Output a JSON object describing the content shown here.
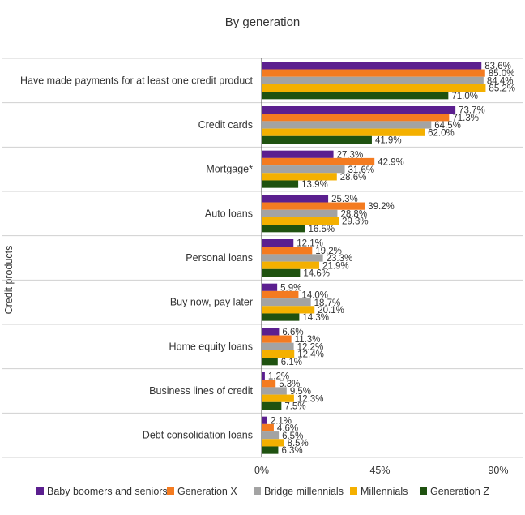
{
  "chart_data": {
    "type": "bar",
    "orientation": "horizontal",
    "title": "By generation",
    "ylabel": "Credit products",
    "xlabel": "",
    "xlim": [
      0,
      90
    ],
    "x_ticks": [
      "0%",
      "45%",
      "90%"
    ],
    "x_tick_values": [
      0,
      45,
      90
    ],
    "categories": [
      "Have made payments for at least one credit product",
      "Credit cards",
      "Mortgage*",
      "Auto loans",
      "Personal loans",
      "Buy now, pay later",
      "Home equity loans",
      "Business lines of credit",
      "Debt consolidation loans"
    ],
    "series": [
      {
        "name": "Baby boomers and seniors",
        "color": "#5b1f8f",
        "values": [
          83.6,
          73.7,
          27.3,
          25.3,
          12.1,
          5.9,
          6.6,
          1.2,
          2.1
        ],
        "labels": [
          "83.6%",
          "73.7%",
          "27.3%",
          "25.3%",
          "12.1%",
          "5.9%",
          "6.6%",
          "1.2%",
          "2.1%"
        ]
      },
      {
        "name": "Generation X",
        "color": "#f47b20",
        "values": [
          85.0,
          71.3,
          42.9,
          39.2,
          19.2,
          14.0,
          11.3,
          5.3,
          4.6
        ],
        "labels": [
          "85.0%",
          "71.3%",
          "42.9%",
          "39.2%",
          "19.2%",
          "14.0%",
          "11.3%",
          "5.3%",
          "4.6%"
        ]
      },
      {
        "name": "Bridge millennials",
        "color": "#a3a3a3",
        "values": [
          84.4,
          64.5,
          31.6,
          28.8,
          23.3,
          18.7,
          12.2,
          9.5,
          6.5
        ],
        "labels": [
          "84.4%",
          "64.5%",
          "31.6%",
          "28.8%",
          "23.3%",
          "18.7%",
          "12.2%",
          "9.5%",
          "6.5%"
        ]
      },
      {
        "name": "Millennials",
        "color": "#f4b000",
        "values": [
          85.2,
          62.0,
          28.6,
          29.3,
          21.9,
          20.1,
          12.4,
          12.3,
          8.5
        ],
        "labels": [
          "85.2%",
          "62.0%",
          "28.6%",
          "29.3%",
          "21.9%",
          "20.1%",
          "12.4%",
          "12.3%",
          "8.5%"
        ]
      },
      {
        "name": "Generation Z",
        "color": "#1f5210",
        "values": [
          71.0,
          41.9,
          13.9,
          16.5,
          14.6,
          14.3,
          6.1,
          7.5,
          6.3
        ],
        "labels": [
          "71.0%",
          "41.9%",
          "13.9%",
          "16.5%",
          "14.6%",
          "14.3%",
          "6.1%",
          "7.5%",
          "6.3%"
        ]
      }
    ],
    "legend": "bottom",
    "grid": false
  }
}
